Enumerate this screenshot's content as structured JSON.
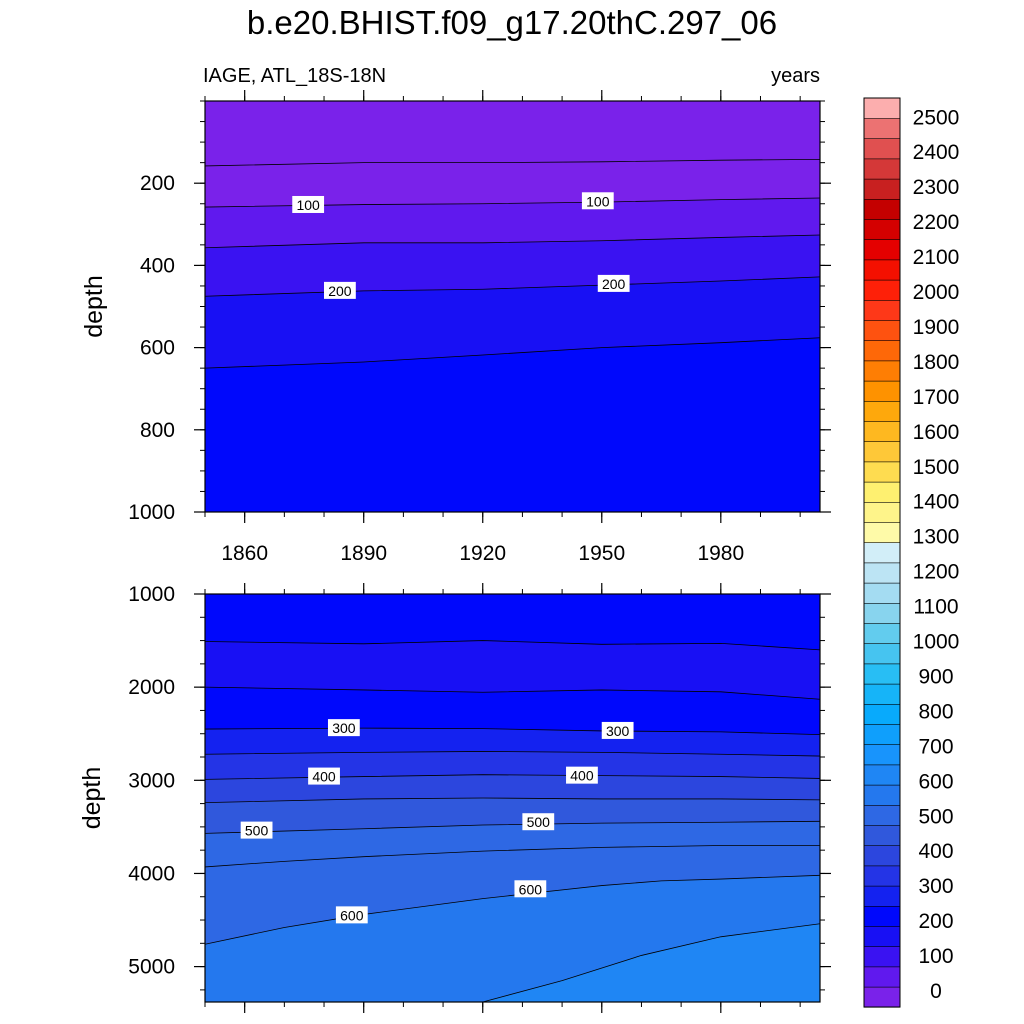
{
  "chart_data": {
    "type": "contour",
    "title": "b.e20.BHIST.f09_g17.20thC.297_06",
    "variable_label": "IAGE, ATL_18S-18N",
    "units_label": "years",
    "x_ticks": [
      1860,
      1890,
      1920,
      1950,
      1980
    ],
    "xlim": [
      1850,
      2005
    ],
    "panels": [
      {
        "ylabel": "depth",
        "ylim": [
          0,
          1000
        ],
        "y_ticks": [
          200,
          400,
          600,
          800,
          1000
        ],
        "y_tick_labels": [
          "200",
          "400",
          "600",
          "800",
          "1000"
        ],
        "levels": [
          {
            "lower": 0,
            "years": [
              1850,
              1890,
              1920,
              1950,
              1980,
              2005
            ],
            "depth": [
              158,
              150,
              150,
              148,
              144,
              142
            ]
          },
          {
            "lower": 50,
            "years": [
              1850,
              1890,
              1920,
              1950,
              1980,
              2005
            ],
            "depth": [
              258,
              252,
              250,
              246,
              240,
              236
            ]
          },
          {
            "lower": 100,
            "years": [
              1850,
              1890,
              1920,
              1950,
              1980,
              2005
            ],
            "depth": [
              357,
              345,
              345,
              340,
              332,
              326
            ]
          },
          {
            "lower": 150,
            "years": [
              1850,
              1890,
              1920,
              1950,
              1980,
              2005
            ],
            "depth": [
              475,
              462,
              458,
              448,
              438,
              428
            ]
          },
          {
            "lower": 200,
            "years": [
              1850,
              1890,
              1920,
              1950,
              1980,
              2005
            ],
            "depth": [
              650,
              635,
              618,
              600,
              588,
              576
            ]
          },
          {
            "lower": 250
          }
        ],
        "contour_labels": [
          {
            "text": "100",
            "x": 1876,
            "y": 253
          },
          {
            "text": "100",
            "x": 1949,
            "y": 244
          },
          {
            "text": "200",
            "x": 1884,
            "y": 462
          },
          {
            "text": "200",
            "x": 1953,
            "y": 445
          }
        ]
      },
      {
        "ylabel": "depth",
        "ylim": [
          1000,
          5380
        ],
        "y_ticks": [
          1000,
          2000,
          3000,
          4000,
          5000
        ],
        "y_tick_labels": [
          "1000",
          "2000",
          "3000",
          "4000",
          "5000"
        ],
        "levels": [
          {
            "lower": 250,
            "years": [
              1850,
              1890,
              1920,
              1950,
              1980,
              2005
            ],
            "depth": [
              1510,
              1535,
              1500,
              1540,
              1530,
              1600
            ]
          },
          {
            "lower": 200,
            "years": [
              1850,
              1890,
              1920,
              1950,
              1980,
              2005
            ],
            "depth": [
              2000,
              2030,
              2055,
              2030,
              2050,
              2130
            ]
          },
          {
            "lower": 250,
            "years": [
              1850,
              1890,
              1920,
              1950,
              1980,
              2005
            ],
            "depth": [
              2450,
              2440,
              2445,
              2470,
              2480,
              2510
            ]
          },
          {
            "lower": 300,
            "years": [
              1850,
              1890,
              1920,
              1950,
              1980,
              2005
            ],
            "depth": [
              2720,
              2700,
              2690,
              2700,
              2720,
              2740
            ]
          },
          {
            "lower": 350,
            "years": [
              1850,
              1890,
              1920,
              1950,
              1980,
              2005
            ],
            "depth": [
              2990,
              2960,
              2940,
              2950,
              2960,
              2980
            ]
          },
          {
            "lower": 400,
            "years": [
              1850,
              1890,
              1920,
              1950,
              1980,
              2005
            ],
            "depth": [
              3240,
              3200,
              3190,
              3200,
              3200,
              3210
            ]
          },
          {
            "lower": 450,
            "years": [
              1850,
              1890,
              1920,
              1950,
              1980,
              2005
            ],
            "depth": [
              3570,
              3520,
              3480,
              3460,
              3450,
              3440
            ]
          },
          {
            "lower": 500,
            "years": [
              1850,
              1870,
              1890,
              1920,
              1950,
              1980,
              2005
            ],
            "depth": [
              3930,
              3870,
              3820,
              3760,
              3720,
              3700,
              3700
            ]
          },
          {
            "lower": 550,
            "years": [
              1850,
              1870,
              1890,
              1920,
              1950,
              1965,
              1980,
              2005
            ],
            "depth": [
              4760,
              4580,
              4440,
              4270,
              4130,
              4080,
              4060,
              4020
            ]
          },
          {
            "lower": 600,
            "years": [
              1920,
              1940,
              1960,
              1980,
              2005
            ],
            "depth": [
              5380,
              5150,
              4880,
              4680,
              4540
            ]
          },
          {
            "lower": 650
          }
        ],
        "contour_labels": [
          {
            "text": "300",
            "x": 1885,
            "y": 2440
          },
          {
            "text": "300",
            "x": 1954,
            "y": 2470
          },
          {
            "text": "400",
            "x": 1880,
            "y": 2960
          },
          {
            "text": "400",
            "x": 1945,
            "y": 2950
          },
          {
            "text": "500",
            "x": 1863,
            "y": 3540
          },
          {
            "text": "500",
            "x": 1934,
            "y": 3450
          },
          {
            "text": "600",
            "x": 1887,
            "y": 4450
          },
          {
            "text": "600",
            "x": 1932,
            "y": 4170
          }
        ]
      }
    ],
    "colorbar": {
      "labels": [
        "0",
        "100",
        "200",
        "300",
        "400",
        "500",
        "600",
        "700",
        "800",
        "900",
        "1000",
        "1100",
        "1200",
        "1300",
        "1400",
        "1500",
        "1600",
        "1700",
        "1800",
        "1900",
        "2000",
        "2100",
        "2200",
        "2300",
        "2400",
        "2500"
      ],
      "colors": [
        "#7a22ea",
        "#6019ee",
        "#3a12f2",
        "#1810f4",
        "#0008fc",
        "#1422f0",
        "#2434e6",
        "#2c46de",
        "#3058dc",
        "#2e68e4",
        "#2478ee",
        "#1f86f4",
        "#1894fc",
        "#0f9ffc",
        "#08aafc",
        "#16b4f8",
        "#28bef4",
        "#46c4f0",
        "#62ccee",
        "#88d4ee",
        "#a4dcf2",
        "#bce4f4",
        "#d2eef8",
        "#fefaa8",
        "#fef48a",
        "#fef070",
        "#fedc50",
        "#fec838",
        "#feb820",
        "#fea80c",
        "#fe9200",
        "#fe7e04",
        "#fe6808",
        "#fe5210",
        "#fe3818",
        "#fe2008",
        "#f41000",
        "#e40000",
        "#d40000",
        "#c40000",
        "#c82020",
        "#d43838",
        "#e05050",
        "#ec7272",
        "#fcaeae"
      ]
    }
  }
}
